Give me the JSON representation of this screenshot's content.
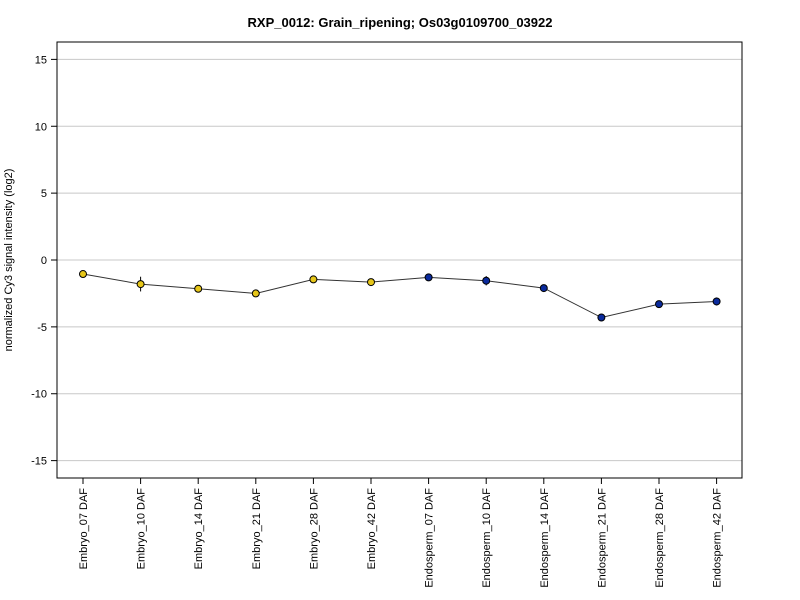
{
  "chart_data": {
    "type": "line",
    "title": "RXP_0012: Grain_ripening; Os03g0109700_03922",
    "xlabel": "",
    "ylabel": "normalized Cy3 signal intensity (log2)",
    "ylim": [
      -16.3,
      16.3
    ],
    "yticks": [
      -15,
      -10,
      -5,
      0,
      5,
      10,
      15
    ],
    "grid": true,
    "categories": [
      "Embryo_07 DAF",
      "Embryo_10 DAF",
      "Embryo_14 DAF",
      "Embryo_21 DAF",
      "Embryo_28 DAF",
      "Embryo_42 DAF",
      "Endosperm_07 DAF",
      "Endosperm_10 DAF",
      "Endosperm_14 DAF",
      "Endosperm_21 DAF",
      "Endosperm_28 DAF",
      "Endosperm_42 DAF"
    ],
    "series": [
      {
        "values": [
          -1.05,
          -1.8,
          -2.15,
          -2.5,
          -1.45,
          -1.65,
          -1.3,
          -1.55,
          -2.1,
          -4.3,
          -3.3,
          -3.1
        ],
        "errors": [
          0.15,
          0.55,
          0.1,
          0.1,
          0.1,
          0.25,
          0.1,
          0.35,
          0.1,
          0.1,
          0.1,
          0.3
        ],
        "point_colors": [
          "#e6c619",
          "#e6c619",
          "#e6c619",
          "#e6c619",
          "#e6c619",
          "#e6c619",
          "#0a2a9c",
          "#0a2a9c",
          "#0a2a9c",
          "#0a2a9c",
          "#0a2a9c",
          "#0a2a9c"
        ]
      }
    ]
  }
}
